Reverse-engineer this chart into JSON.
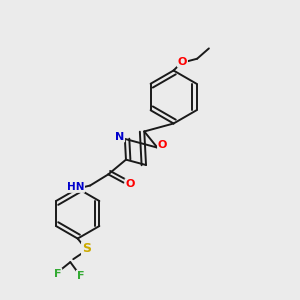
{
  "bg_color": "#ebebeb",
  "bond_color": "#1a1a1a",
  "atom_colors": {
    "O": "#ff0000",
    "N": "#0000cc",
    "S": "#ccaa00",
    "F": "#33aa33",
    "C": "#1a1a1a"
  },
  "figsize": [
    3.0,
    3.0
  ],
  "dpi": 100,
  "lw": 1.4,
  "fontsize": 7.5,
  "double_sep": 0.1
}
